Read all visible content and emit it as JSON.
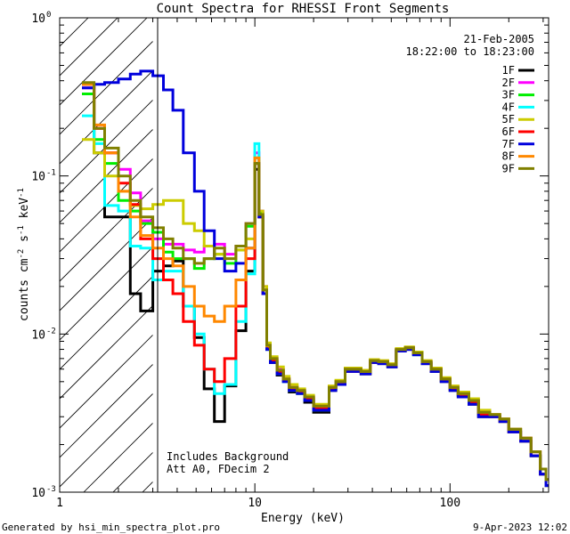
{
  "chart_data": {
    "type": "line",
    "title": "Count Spectra for RHESSI Front Segments",
    "xlabel": "Energy (keV)",
    "ylabel_parts": [
      "counts cm",
      "-2",
      " s",
      "-1",
      " keV",
      "-1"
    ],
    "xscale": "log",
    "yscale": "log",
    "xlim": [
      1,
      320
    ],
    "ylim": [
      0.001,
      1
    ],
    "x_ticks": [
      {
        "value": 1,
        "label": "1"
      },
      {
        "value": 10,
        "label": "10"
      },
      {
        "value": 100,
        "label": "100"
      }
    ],
    "y_ticks": [
      {
        "value": 1,
        "base": "10",
        "exp": "0"
      },
      {
        "value": 0.1,
        "base": "10",
        "exp": "-1"
      },
      {
        "value": 0.01,
        "base": "10",
        "exp": "-2"
      },
      {
        "value": 0.001,
        "base": "10",
        "exp": "-3"
      }
    ],
    "shaded_region_keV": [
      1,
      3
    ],
    "date": "21-Feb-2005",
    "time_range": "18:22:00 to 18:23:00",
    "annotation_lines": [
      "Includes Background",
      "Att A0, FDecim 2"
    ],
    "series": [
      {
        "name": "1F",
        "color": "#000000",
        "x": [
          1.3,
          1.5,
          1.7,
          2.0,
          2.3,
          2.6,
          3.0,
          3.4,
          3.8,
          4.3,
          4.9,
          5.5,
          6.2,
          7.0,
          8.0,
          9.0,
          10.0,
          10.5,
          11.0,
          11.5,
          12.0,
          13.0,
          14.0,
          15.0,
          16.5,
          18.0,
          20,
          22,
          24,
          26,
          29,
          32,
          35,
          39,
          43,
          48,
          53,
          59,
          65,
          72,
          80,
          90,
          100,
          110,
          125,
          140,
          160,
          180,
          200,
          230,
          260,
          290,
          310
        ],
        "y": [
          0.38,
          0.14,
          0.055,
          0.055,
          0.018,
          0.014,
          0.025,
          0.027,
          0.029,
          0.015,
          0.0095,
          0.0045,
          0.0028,
          0.0047,
          0.0105,
          0.025,
          0.11,
          0.055,
          0.018,
          0.008,
          0.0066,
          0.0055,
          0.005,
          0.0043,
          0.0043,
          0.0037,
          0.0032,
          0.0032,
          0.0044,
          0.0048,
          0.0058,
          0.0058,
          0.0056,
          0.0066,
          0.0065,
          0.0062,
          0.0078,
          0.008,
          0.0074,
          0.0065,
          0.0058,
          0.005,
          0.0044,
          0.004,
          0.0036,
          0.003,
          0.003,
          0.0028,
          0.0024,
          0.0021,
          0.0017,
          0.0013,
          0.0011
        ]
      },
      {
        "name": "2F",
        "color": "#ff00ff",
        "x": [
          1.3,
          1.5,
          1.7,
          2.0,
          2.3,
          2.6,
          3.0,
          3.4,
          3.8,
          4.3,
          4.9,
          5.5,
          6.2,
          7.0,
          8.0,
          9.0,
          10.0,
          10.5,
          11.0,
          11.5,
          12.0,
          13.0,
          14.0,
          15.0,
          16.5,
          18.0,
          20,
          22,
          24,
          26,
          29,
          32,
          35,
          39,
          43,
          48,
          53,
          59,
          65,
          72,
          80,
          90,
          100,
          110,
          125,
          140,
          160,
          180,
          200,
          230,
          260,
          290,
          310
        ],
        "y": [
          0.36,
          0.2,
          0.14,
          0.11,
          0.078,
          0.052,
          0.04,
          0.037,
          0.037,
          0.034,
          0.033,
          0.036,
          0.037,
          0.032,
          0.036,
          0.05,
          0.14,
          0.06,
          0.02,
          0.0085,
          0.007,
          0.006,
          0.0052,
          0.0046,
          0.0043,
          0.004,
          0.0035,
          0.0035,
          0.0046,
          0.005,
          0.006,
          0.006,
          0.0058,
          0.0068,
          0.0066,
          0.0064,
          0.008,
          0.0082,
          0.0076,
          0.0067,
          0.006,
          0.0052,
          0.0046,
          0.0042,
          0.0038,
          0.0032,
          0.003,
          0.0028,
          0.0025,
          0.0022,
          0.0018,
          0.0014,
          0.0012
        ]
      },
      {
        "name": "3F",
        "color": "#00ee00",
        "x": [
          1.3,
          1.5,
          1.7,
          2.0,
          2.3,
          2.6,
          3.0,
          3.4,
          3.8,
          4.3,
          4.9,
          5.5,
          6.2,
          7.0,
          8.0,
          9.0,
          10.0,
          10.5,
          11.0,
          11.5,
          12.0,
          13.0,
          14.0,
          15.0,
          16.5,
          18.0,
          20,
          22,
          24,
          26,
          29,
          32,
          35,
          39,
          43,
          48,
          53,
          59,
          65,
          72,
          80,
          90,
          100,
          110,
          125,
          140,
          160,
          180,
          200,
          230,
          260,
          290,
          310
        ],
        "y": [
          0.33,
          0.17,
          0.12,
          0.07,
          0.06,
          0.05,
          0.044,
          0.033,
          0.03,
          0.03,
          0.026,
          0.03,
          0.032,
          0.028,
          0.034,
          0.048,
          0.13,
          0.058,
          0.019,
          0.0082,
          0.0068,
          0.0058,
          0.0051,
          0.0045,
          0.0042,
          0.0039,
          0.0034,
          0.0034,
          0.0045,
          0.0049,
          0.0059,
          0.0059,
          0.0057,
          0.0067,
          0.0066,
          0.0063,
          0.0079,
          0.0081,
          0.0075,
          0.0066,
          0.0059,
          0.0051,
          0.0045,
          0.0041,
          0.0037,
          0.0031,
          0.003,
          0.0028,
          0.0025,
          0.0021,
          0.0017,
          0.0013,
          0.0011
        ]
      },
      {
        "name": "4F",
        "color": "#00ffff",
        "x": [
          1.3,
          1.5,
          1.7,
          2.0,
          2.3,
          2.6,
          3.0,
          3.4,
          3.8,
          4.3,
          4.9,
          5.5,
          6.2,
          7.0,
          8.0,
          9.0,
          10.0,
          10.5,
          11.0,
          11.5,
          12.0,
          13.0,
          14.0,
          15.0,
          16.5,
          18.0,
          20,
          22,
          24,
          26,
          29,
          32,
          35,
          39,
          43,
          48,
          53,
          59,
          65,
          72,
          80,
          90,
          100,
          110,
          125,
          140,
          160,
          180,
          200,
          230,
          260,
          290,
          310
        ],
        "y": [
          0.24,
          0.16,
          0.065,
          0.06,
          0.036,
          0.035,
          0.022,
          0.025,
          0.025,
          0.015,
          0.01,
          0.006,
          0.0042,
          0.0048,
          0.012,
          0.024,
          0.16,
          0.056,
          0.019,
          0.008,
          0.0067,
          0.0056,
          0.005,
          0.0044,
          0.0043,
          0.0038,
          0.0033,
          0.0033,
          0.0045,
          0.0049,
          0.0058,
          0.0058,
          0.0056,
          0.0066,
          0.0066,
          0.0063,
          0.0079,
          0.0082,
          0.0074,
          0.0066,
          0.0059,
          0.0051,
          0.0045,
          0.0041,
          0.0037,
          0.0031,
          0.003,
          0.0028,
          0.0024,
          0.0021,
          0.0017,
          0.0013,
          0.0011
        ]
      },
      {
        "name": "5F",
        "color": "#cccc00",
        "x": [
          1.3,
          1.5,
          1.7,
          2.0,
          2.3,
          2.6,
          3.0,
          3.4,
          3.8,
          4.3,
          4.9,
          5.5,
          6.2,
          7.0,
          8.0,
          9.0,
          10.0,
          10.5,
          11.0,
          11.5,
          12.0,
          13.0,
          14.0,
          15.0,
          16.5,
          18.0,
          20,
          22,
          24,
          26,
          29,
          32,
          35,
          39,
          43,
          48,
          53,
          59,
          65,
          72,
          80,
          90,
          100,
          110,
          125,
          140,
          160,
          180,
          200,
          230,
          260,
          290,
          310
        ],
        "y": [
          0.17,
          0.14,
          0.1,
          0.08,
          0.065,
          0.062,
          0.066,
          0.07,
          0.07,
          0.05,
          0.045,
          0.036,
          0.032,
          0.03,
          0.034,
          0.04,
          0.12,
          0.06,
          0.02,
          0.0088,
          0.0072,
          0.0062,
          0.0054,
          0.0048,
          0.0045,
          0.0041,
          0.0036,
          0.0036,
          0.0047,
          0.0051,
          0.0061,
          0.0061,
          0.0059,
          0.0069,
          0.0068,
          0.0065,
          0.0081,
          0.0083,
          0.0077,
          0.0068,
          0.0061,
          0.0053,
          0.0047,
          0.0043,
          0.0039,
          0.0033,
          0.0031,
          0.0029,
          0.0025,
          0.0022,
          0.0018,
          0.0014,
          0.0012
        ]
      },
      {
        "name": "6F",
        "color": "#ff0000",
        "x": [
          1.3,
          1.5,
          1.7,
          2.0,
          2.3,
          2.6,
          3.0,
          3.4,
          3.8,
          4.3,
          4.9,
          5.5,
          6.2,
          7.0,
          8.0,
          9.0,
          10.0,
          10.5,
          11.0,
          11.5,
          12.0,
          13.0,
          14.0,
          15.0,
          16.5,
          18.0,
          20,
          22,
          24,
          26,
          29,
          32,
          35,
          39,
          43,
          48,
          53,
          59,
          65,
          72,
          80,
          90,
          100,
          110,
          125,
          140,
          160,
          180,
          200,
          230,
          260,
          290,
          310
        ],
        "y": [
          0.38,
          0.2,
          0.14,
          0.09,
          0.066,
          0.04,
          0.03,
          0.022,
          0.018,
          0.012,
          0.0085,
          0.006,
          0.005,
          0.007,
          0.015,
          0.03,
          0.12,
          0.055,
          0.018,
          0.0082,
          0.0068,
          0.0057,
          0.0051,
          0.0045,
          0.0043,
          0.0039,
          0.0034,
          0.0034,
          0.0045,
          0.0049,
          0.0058,
          0.0058,
          0.0056,
          0.0066,
          0.0066,
          0.0063,
          0.0079,
          0.0081,
          0.0075,
          0.0066,
          0.0059,
          0.0051,
          0.0045,
          0.0041,
          0.0037,
          0.0031,
          0.003,
          0.0028,
          0.0024,
          0.0021,
          0.0017,
          0.0013,
          0.0011
        ]
      },
      {
        "name": "7F",
        "color": "#0000dd",
        "x": [
          1.3,
          1.5,
          1.7,
          2.0,
          2.3,
          2.6,
          3.0,
          3.4,
          3.8,
          4.3,
          4.9,
          5.5,
          6.2,
          7.0,
          8.0,
          9.0,
          10.0,
          10.5,
          11.0,
          11.5,
          12.0,
          13.0,
          14.0,
          15.0,
          16.5,
          18.0,
          20,
          22,
          24,
          26,
          29,
          32,
          35,
          39,
          43,
          48,
          53,
          59,
          65,
          72,
          80,
          90,
          100,
          110,
          125,
          140,
          160,
          180,
          200,
          230,
          260,
          290,
          310
        ],
        "y": [
          0.36,
          0.38,
          0.39,
          0.41,
          0.44,
          0.46,
          0.43,
          0.35,
          0.26,
          0.14,
          0.08,
          0.045,
          0.03,
          0.025,
          0.028,
          0.035,
          0.12,
          0.055,
          0.018,
          0.008,
          0.0066,
          0.0056,
          0.005,
          0.0044,
          0.0042,
          0.0038,
          0.0033,
          0.0033,
          0.0044,
          0.0048,
          0.0058,
          0.0058,
          0.0056,
          0.0066,
          0.0065,
          0.0062,
          0.0078,
          0.008,
          0.0074,
          0.0065,
          0.0058,
          0.005,
          0.0044,
          0.004,
          0.0036,
          0.003,
          0.003,
          0.0028,
          0.0024,
          0.0021,
          0.0017,
          0.0013,
          0.0011
        ]
      },
      {
        "name": "8F",
        "color": "#ff8800",
        "x": [
          1.3,
          1.5,
          1.7,
          2.0,
          2.3,
          2.6,
          3.0,
          3.4,
          3.8,
          4.3,
          4.9,
          5.5,
          6.2,
          7.0,
          8.0,
          9.0,
          10.0,
          10.5,
          11.0,
          11.5,
          12.0,
          13.0,
          14.0,
          15.0,
          16.5,
          18.0,
          20,
          22,
          24,
          26,
          29,
          32,
          35,
          39,
          43,
          48,
          53,
          59,
          65,
          72,
          80,
          90,
          100,
          110,
          125,
          140,
          160,
          180,
          200,
          230,
          260,
          290,
          310
        ],
        "y": [
          0.38,
          0.21,
          0.14,
          0.08,
          0.055,
          0.042,
          0.035,
          0.03,
          0.027,
          0.02,
          0.015,
          0.013,
          0.012,
          0.015,
          0.022,
          0.035,
          0.13,
          0.057,
          0.019,
          0.0084,
          0.007,
          0.0059,
          0.0052,
          0.0046,
          0.0044,
          0.004,
          0.0035,
          0.0035,
          0.0046,
          0.005,
          0.006,
          0.006,
          0.0058,
          0.0068,
          0.0067,
          0.0064,
          0.008,
          0.0082,
          0.0076,
          0.0067,
          0.006,
          0.0052,
          0.0046,
          0.0042,
          0.0038,
          0.0032,
          0.0031,
          0.0029,
          0.0025,
          0.0022,
          0.0018,
          0.0014,
          0.0012
        ]
      },
      {
        "name": "9F",
        "color": "#808000",
        "x": [
          1.3,
          1.5,
          1.7,
          2.0,
          2.3,
          2.6,
          3.0,
          3.4,
          3.8,
          4.3,
          4.9,
          5.5,
          6.2,
          7.0,
          8.0,
          9.0,
          10.0,
          10.5,
          11.0,
          11.5,
          12.0,
          13.0,
          14.0,
          15.0,
          16.5,
          18.0,
          20,
          22,
          24,
          26,
          29,
          32,
          35,
          39,
          43,
          48,
          53,
          59,
          65,
          72,
          80,
          90,
          100,
          110,
          125,
          140,
          160,
          180,
          200,
          230,
          260,
          290,
          310
        ],
        "y": [
          0.39,
          0.2,
          0.15,
          0.1,
          0.07,
          0.055,
          0.047,
          0.04,
          0.035,
          0.03,
          0.028,
          0.03,
          0.035,
          0.03,
          0.036,
          0.05,
          0.12,
          0.057,
          0.019,
          0.0085,
          0.007,
          0.0059,
          0.0052,
          0.0046,
          0.0044,
          0.004,
          0.0035,
          0.0035,
          0.0046,
          0.005,
          0.006,
          0.006,
          0.0058,
          0.0068,
          0.0067,
          0.0064,
          0.008,
          0.0082,
          0.0076,
          0.0067,
          0.006,
          0.0052,
          0.0046,
          0.0042,
          0.0038,
          0.0032,
          0.0031,
          0.0029,
          0.0025,
          0.0022,
          0.0018,
          0.0014,
          0.0012
        ]
      }
    ]
  },
  "footer": {
    "generated_by": "Generated by hsi_min_spectra_plot.pro",
    "timestamp": "9-Apr-2023 12:02"
  }
}
